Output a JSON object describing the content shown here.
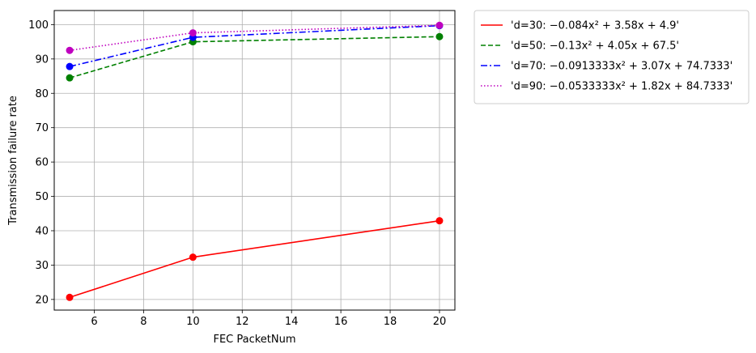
{
  "chart_data": {
    "type": "line",
    "title": "",
    "xlabel": "FEC PacketNum",
    "ylabel": "Transmission failure rate",
    "x": [
      5,
      10,
      20
    ],
    "xlim": [
      4.375,
      20.625
    ],
    "ylim": [
      16.9,
      104.1
    ],
    "xticks": [
      6,
      8,
      10,
      12,
      14,
      16,
      18,
      20
    ],
    "yticks": [
      20,
      30,
      40,
      50,
      60,
      70,
      80,
      90,
      100
    ],
    "grid": true,
    "legend_position": "outside upper right",
    "series": [
      {
        "name": "'d=30: −0.084x² + 3.58x + 4.9'",
        "values": [
          20.6,
          32.3,
          42.9
        ],
        "color": "#ff0000",
        "dash": "solid",
        "marker_color": "#ff0000"
      },
      {
        "name": "'d=50: −0.13x² + 4.05x + 67.5'",
        "values": [
          84.5,
          95.0,
          96.5
        ],
        "color": "#008000",
        "dash": "dashed",
        "marker_color": "#008000"
      },
      {
        "name": "'d=70: −0.0913333x² + 3.07x + 74.7333'",
        "values": [
          87.8,
          96.3,
          99.7
        ],
        "color": "#0000ff",
        "dash": "dashdot",
        "marker_color": "#0000ff"
      },
      {
        "name": "'d=90: −0.0533333x² + 1.82x + 84.7333'",
        "values": [
          92.5,
          97.6,
          99.8
        ],
        "color": "#bf00bf",
        "dash": "dotted",
        "marker_color": "#bf00bf"
      }
    ]
  }
}
